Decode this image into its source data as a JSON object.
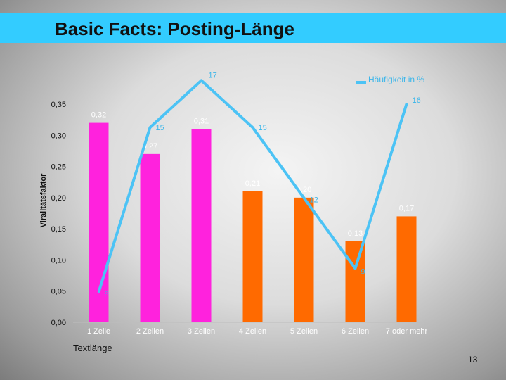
{
  "slide": {
    "title": "Basic Facts: Posting-Länge",
    "page_number": "13",
    "colors": {
      "title_bar": "#33ccff"
    }
  },
  "chart_data": {
    "type": "bar",
    "xlabel": "Textlänge",
    "ylabel": "Viralitätsfaktor",
    "ylim": [
      0,
      0.35
    ],
    "yticks": [
      "0,00",
      "0,05",
      "0,10",
      "0,15",
      "0,20",
      "0,25",
      "0,30",
      "0,35"
    ],
    "categories": [
      "1 Zeile",
      "2 Zeilen",
      "3 Zeilen",
      "4 Zeilen",
      "5 Zeilen",
      "6 Zeilen",
      "7 oder mehr"
    ],
    "series": [
      {
        "values": [
          0.32,
          0.27,
          0.31,
          0.21,
          0.2,
          0.13,
          0.17
        ],
        "labels": [
          "0,32",
          "0,27",
          "0,31",
          "0,21",
          "0,20",
          "0,13",
          "0,17"
        ],
        "colors": [
          "#ff22dd",
          "#ff22dd",
          "#ff22dd",
          "#ff6a00",
          "#ff6a00",
          "#ff6a00",
          "#ff6a00"
        ]
      },
      {
        "name": "Häufigkeit in %",
        "type": "line",
        "values": [
          8,
          15,
          17,
          15,
          12,
          9,
          16
        ],
        "labels": [
          "8",
          "15",
          "17",
          "15",
          "12",
          "9",
          "16"
        ],
        "color": "#4cc3f5"
      }
    ],
    "secondary_ylim": [
      5,
      18
    ],
    "grid": false,
    "legend": "top-right"
  }
}
